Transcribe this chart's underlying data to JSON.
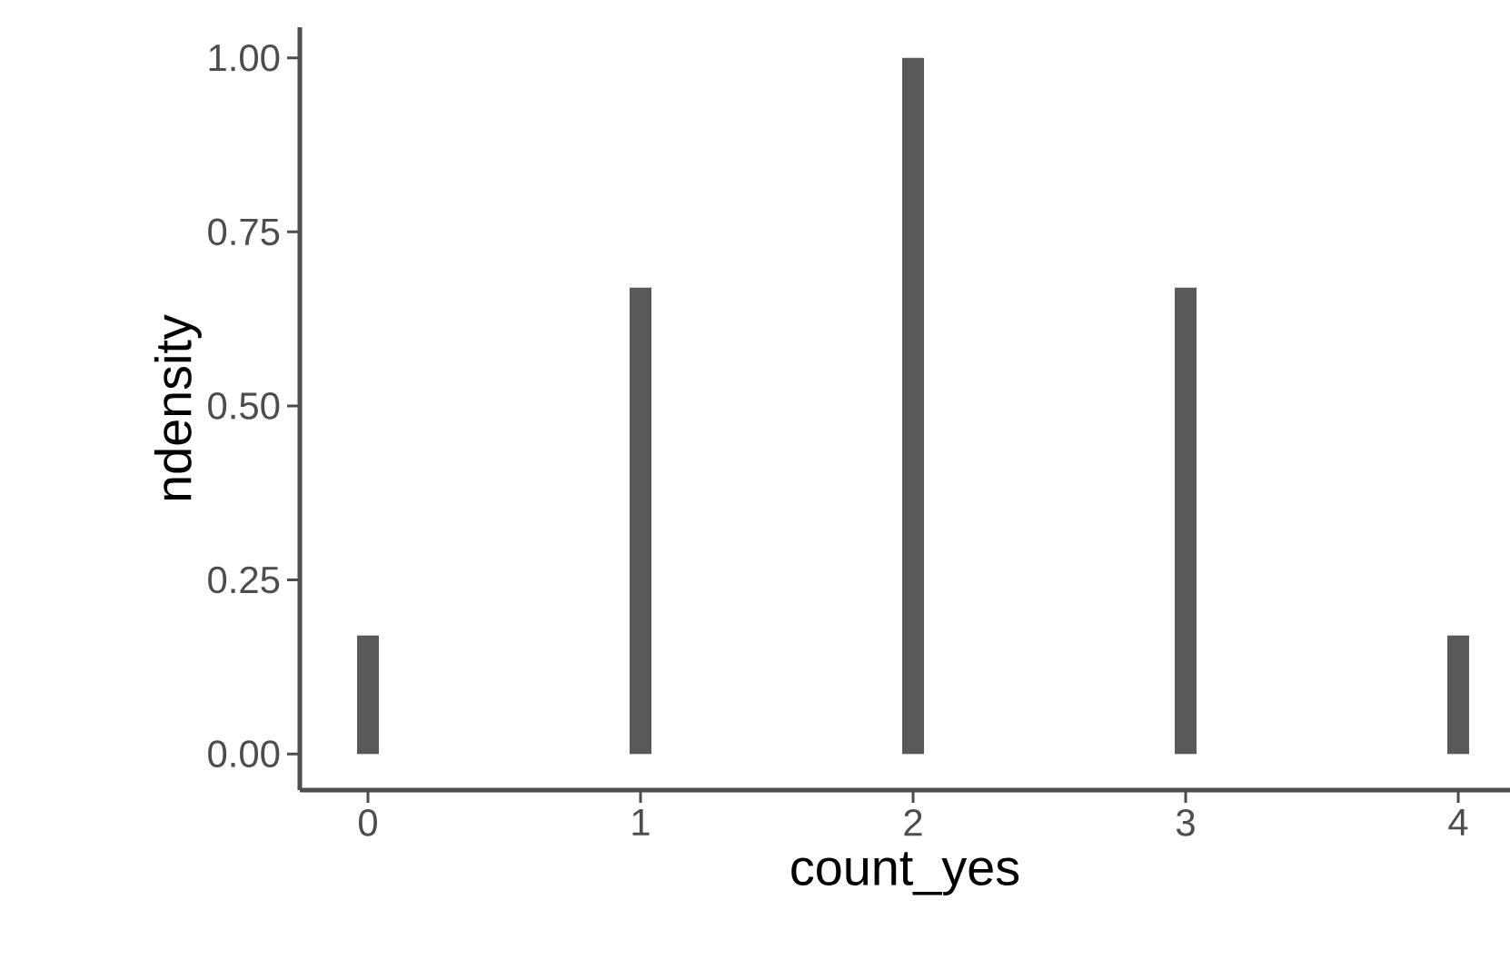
{
  "chart_data": {
    "type": "bar",
    "xlabel": "count_yes",
    "ylabel": "ndensity",
    "x": [
      0,
      1,
      2,
      3,
      4
    ],
    "values": [
      0.17,
      0.67,
      1.0,
      0.67,
      0.17
    ],
    "color": "#595959",
    "xlim": [
      -0.25,
      4.19
    ],
    "ylim": [
      -0.052,
      1.044
    ],
    "xticks": [
      0,
      1,
      2,
      3,
      4
    ],
    "yticks": [
      {
        "value": 0,
        "label": "0.00"
      },
      {
        "value": 0.25,
        "label": "0.25"
      },
      {
        "value": 0.5,
        "label": "0.50"
      },
      {
        "value": 0.75,
        "label": "0.75"
      },
      {
        "value": 1.0,
        "label": "1.00"
      }
    ],
    "grid": false
  }
}
